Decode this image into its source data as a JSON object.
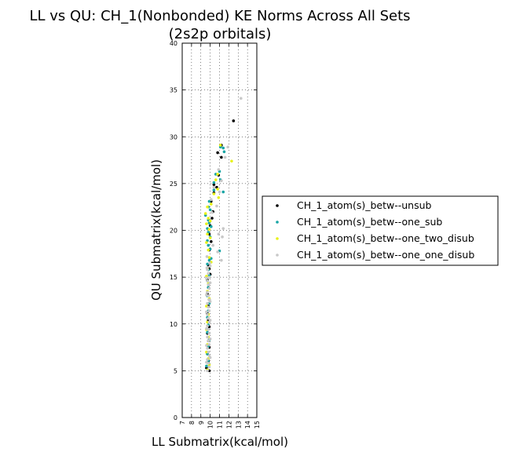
{
  "chart_data": {
    "type": "scatter",
    "title_line1": "LL vs QU: CH_1(Nonbonded) KE Norms Across All Sets",
    "title_line2": "(2s2p orbitals)",
    "xlabel": "LL Submatrix(kcal/mol)",
    "ylabel": "QU Submatrix(kcal/mol)",
    "xlim": [
      7,
      15
    ],
    "ylim": [
      0,
      40
    ],
    "xticks": [
      7,
      8,
      9,
      10,
      11,
      12,
      13,
      14,
      15
    ],
    "yticks": [
      0,
      5,
      10,
      15,
      20,
      25,
      30,
      35,
      40
    ],
    "grid": true,
    "grid_style": "dotted",
    "legend_position": "right-outside",
    "series": [
      {
        "name": "CH_1_atom(s)_betw--unsub",
        "color": "#000000",
        "points": [
          [
            12.5,
            31.7
          ],
          [
            10.8,
            28.3
          ],
          [
            11.2,
            29.1
          ],
          [
            11.2,
            27.8
          ],
          [
            10.4,
            24.9
          ],
          [
            10.4,
            24.0
          ],
          [
            10.9,
            25.9
          ],
          [
            10.7,
            24.6
          ],
          [
            10.1,
            23.1
          ],
          [
            10.3,
            22.0
          ],
          [
            10.2,
            21.3
          ],
          [
            10.0,
            20.5
          ],
          [
            9.9,
            19.6
          ],
          [
            10.1,
            18.8
          ],
          [
            9.9,
            17.9
          ],
          [
            10.0,
            17.0
          ],
          [
            9.8,
            16.3
          ],
          [
            9.9,
            15.9
          ],
          [
            10.0,
            15.3
          ],
          [
            9.7,
            14.7
          ],
          [
            9.8,
            13.9
          ],
          [
            9.7,
            13.2
          ],
          [
            9.9,
            12.6
          ],
          [
            9.8,
            11.9
          ],
          [
            9.7,
            11.1
          ],
          [
            9.8,
            10.4
          ],
          [
            9.9,
            9.7
          ],
          [
            9.7,
            9.0
          ],
          [
            9.8,
            8.2
          ],
          [
            9.9,
            7.5
          ],
          [
            9.7,
            6.8
          ],
          [
            9.8,
            6.0
          ],
          [
            9.6,
            5.3
          ],
          [
            9.9,
            5.0
          ]
        ]
      },
      {
        "name": "CH_1_atom(s)_betw--one_sub",
        "color": "#17a5a5",
        "points": [
          [
            11.4,
            28.8
          ],
          [
            11.5,
            28.4
          ],
          [
            11.1,
            28.9
          ],
          [
            11.0,
            26.3
          ],
          [
            11.1,
            25.4
          ],
          [
            10.6,
            26.0
          ],
          [
            10.4,
            25.1
          ],
          [
            10.4,
            24.3
          ],
          [
            11.4,
            24.1
          ],
          [
            9.9,
            23.1
          ],
          [
            9.8,
            22.5
          ],
          [
            10.0,
            22.2
          ],
          [
            9.5,
            21.6
          ],
          [
            9.8,
            21.1
          ],
          [
            9.9,
            20.8
          ],
          [
            10.1,
            20.4
          ],
          [
            9.7,
            20.2
          ],
          [
            9.8,
            19.8
          ],
          [
            10.0,
            19.3
          ],
          [
            9.7,
            18.9
          ],
          [
            9.8,
            18.4
          ],
          [
            10.0,
            18.0
          ],
          [
            11.0,
            17.8
          ],
          [
            10.1,
            17.0
          ],
          [
            9.9,
            16.8
          ],
          [
            9.7,
            16.4
          ],
          [
            9.8,
            15.8
          ],
          [
            9.9,
            15.2
          ],
          [
            9.7,
            14.6
          ],
          [
            9.8,
            13.9
          ],
          [
            9.7,
            13.0
          ],
          [
            9.9,
            12.2
          ],
          [
            9.8,
            11.4
          ],
          [
            9.7,
            10.7
          ],
          [
            9.8,
            9.9
          ],
          [
            9.7,
            9.1
          ],
          [
            9.9,
            8.3
          ],
          [
            9.8,
            7.6
          ],
          [
            9.7,
            6.8
          ],
          [
            9.8,
            6.1
          ],
          [
            9.6,
            5.5
          ]
        ]
      },
      {
        "name": "CH_1_atom(s)_betw--one_two_disub",
        "color": "#e8f219",
        "points": [
          [
            12.3,
            27.4
          ],
          [
            11.1,
            29.1
          ],
          [
            10.8,
            26.0
          ],
          [
            10.6,
            25.4
          ],
          [
            10.8,
            24.4
          ],
          [
            10.4,
            23.9
          ],
          [
            10.9,
            23.5
          ],
          [
            9.7,
            22.5
          ],
          [
            10.1,
            22.8
          ],
          [
            9.5,
            21.8
          ],
          [
            9.8,
            21.3
          ],
          [
            10.0,
            21.0
          ],
          [
            9.6,
            20.7
          ],
          [
            9.9,
            20.1
          ],
          [
            9.7,
            19.6
          ],
          [
            10.0,
            19.2
          ],
          [
            9.6,
            18.7
          ],
          [
            9.8,
            17.9
          ],
          [
            9.9,
            17.1
          ],
          [
            10.1,
            16.6
          ],
          [
            9.7,
            15.9
          ],
          [
            9.6,
            15.1
          ],
          [
            9.8,
            14.3
          ],
          [
            9.7,
            13.5
          ],
          [
            9.9,
            12.7
          ],
          [
            9.6,
            11.9
          ],
          [
            9.8,
            11.0
          ],
          [
            9.7,
            10.2
          ],
          [
            9.6,
            9.4
          ],
          [
            9.8,
            8.6
          ],
          [
            9.7,
            7.8
          ],
          [
            9.6,
            7.0
          ],
          [
            9.8,
            6.3
          ],
          [
            9.9,
            5.6
          ],
          [
            9.7,
            5.1
          ]
        ]
      },
      {
        "name": "CH_1_atom(s)_betw--one_one_disub",
        "color": "#c8c8c8",
        "points": [
          [
            13.3,
            34.1
          ],
          [
            11.9,
            28.9
          ],
          [
            11.6,
            27.8
          ],
          [
            10.9,
            26.5
          ],
          [
            11.2,
            25.3
          ],
          [
            10.4,
            24.6
          ],
          [
            11.0,
            24.1
          ],
          [
            10.1,
            23.3
          ],
          [
            10.7,
            22.6
          ],
          [
            10.2,
            21.9
          ],
          [
            11.4,
            20.2
          ],
          [
            10.9,
            19.6
          ],
          [
            11.3,
            19.3
          ],
          [
            10.3,
            18.4
          ],
          [
            10.8,
            17.7
          ],
          [
            11.2,
            16.8
          ],
          [
            10.0,
            16.2
          ],
          [
            9.7,
            15.8
          ],
          [
            9.8,
            15.4
          ],
          [
            9.9,
            15.0
          ],
          [
            9.7,
            14.6
          ],
          [
            9.8,
            14.2
          ],
          [
            9.9,
            13.8
          ],
          [
            9.7,
            13.4
          ],
          [
            9.8,
            13.0
          ],
          [
            9.9,
            12.6
          ],
          [
            9.7,
            12.2
          ],
          [
            9.8,
            11.8
          ],
          [
            9.9,
            11.4
          ],
          [
            9.7,
            11.0
          ],
          [
            9.8,
            10.6
          ],
          [
            9.9,
            10.2
          ],
          [
            9.7,
            9.8
          ],
          [
            9.8,
            9.4
          ],
          [
            9.9,
            9.0
          ],
          [
            9.7,
            8.6
          ],
          [
            9.8,
            8.2
          ],
          [
            9.9,
            7.8
          ],
          [
            9.7,
            7.4
          ],
          [
            9.8,
            7.0
          ],
          [
            9.9,
            6.6
          ],
          [
            9.7,
            6.2
          ],
          [
            9.8,
            5.8
          ],
          [
            9.9,
            5.4
          ],
          [
            9.7,
            5.0
          ],
          [
            9.6,
            14.9
          ],
          [
            9.6,
            13.1
          ],
          [
            9.6,
            11.3
          ],
          [
            9.6,
            9.5
          ],
          [
            9.6,
            7.7
          ],
          [
            9.6,
            5.9
          ],
          [
            10.0,
            14.4
          ],
          [
            10.0,
            12.4
          ],
          [
            10.0,
            10.4
          ],
          [
            10.0,
            8.4
          ],
          [
            10.0,
            6.4
          ],
          [
            9.65,
            16.0
          ],
          [
            9.95,
            16.5
          ],
          [
            9.65,
            17.2
          ]
        ]
      }
    ]
  }
}
